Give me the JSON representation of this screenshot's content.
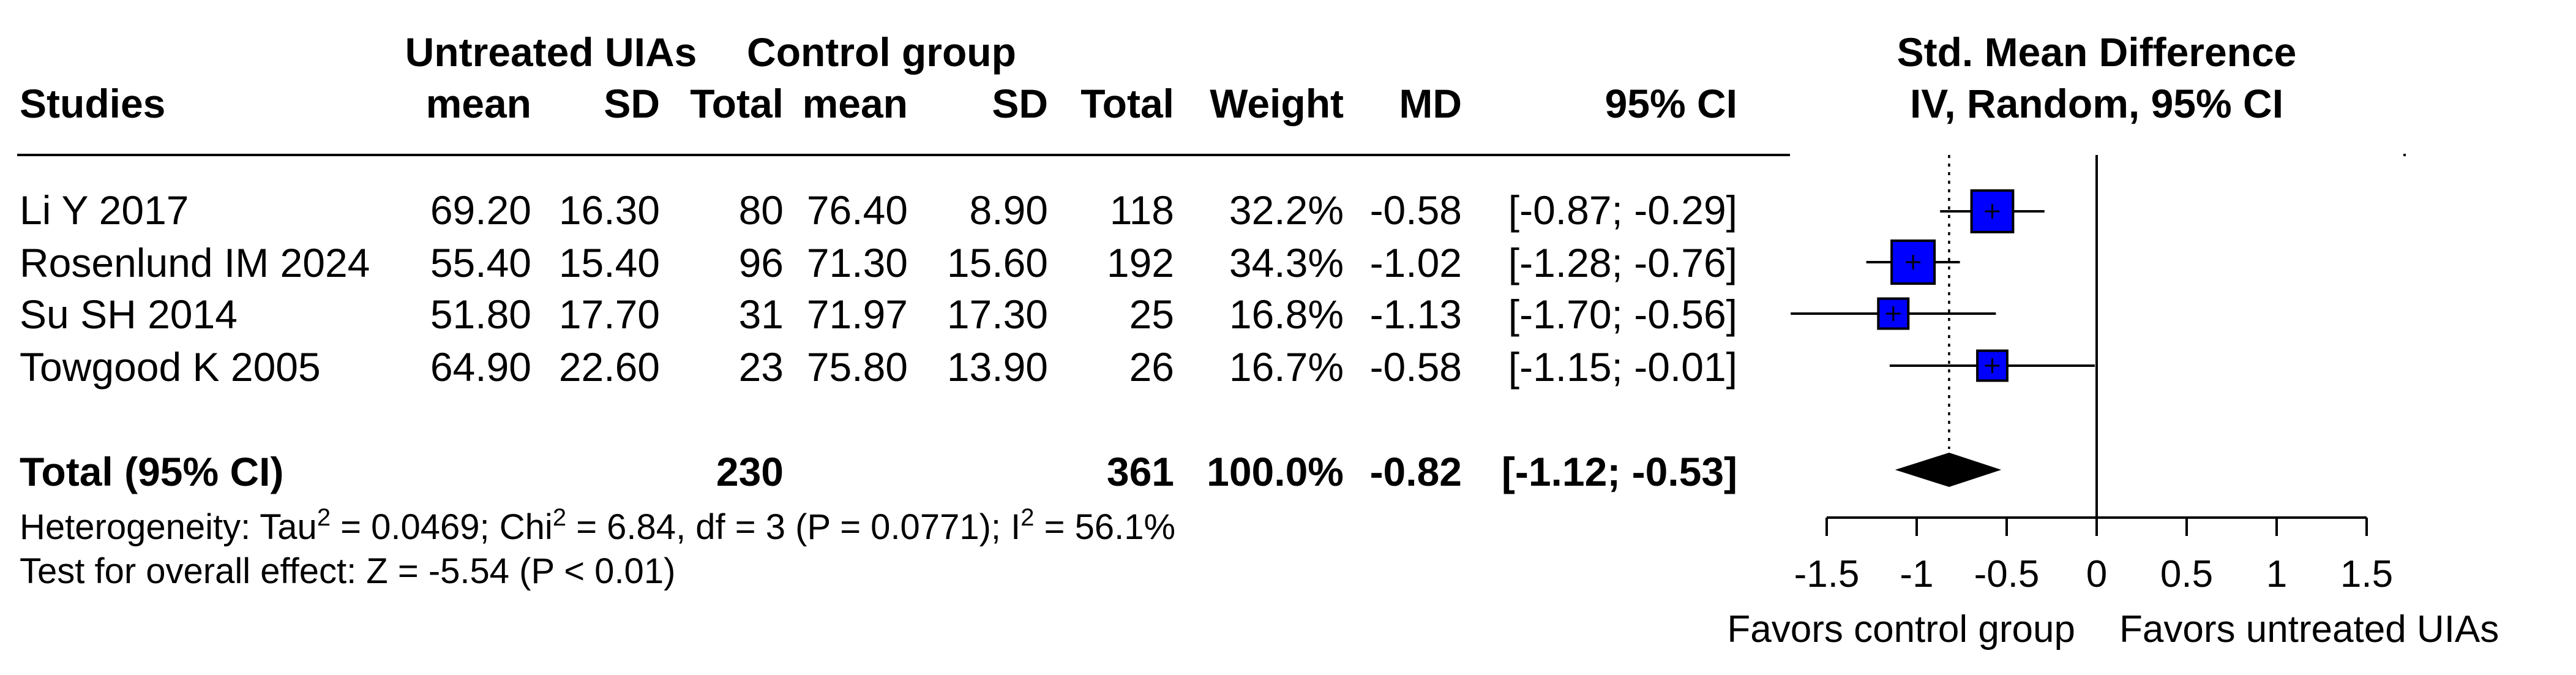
{
  "chart_data": {
    "type": "forest",
    "headers": {
      "group1": "Untreated UIAs",
      "group2": "Control group",
      "studies": "Studies",
      "mean1": "mean",
      "sd1": "SD",
      "total1": "Total",
      "mean2": "mean",
      "sd2": "SD",
      "total2": "Total",
      "weight": "Weight",
      "md": "MD",
      "ci": "95% CI",
      "plot_title": "Std. Mean Difference",
      "plot_subtitle": "IV, Random, 95% CI"
    },
    "studies": [
      {
        "name": "Li Y 2017",
        "mean1": "69.20",
        "sd1": "16.30",
        "total1": "80",
        "mean2": "76.40",
        "sd2": "8.90",
        "total2": "118",
        "weight": "32.2%",
        "md": "-0.58",
        "ci": "[-0.87; -0.29]",
        "est": -0.58,
        "lo": -0.87,
        "hi": -0.29,
        "w": 32.2
      },
      {
        "name": "Rosenlund IM 2024",
        "mean1": "55.40",
        "sd1": "15.40",
        "total1": "96",
        "mean2": "71.30",
        "sd2": "15.60",
        "total2": "192",
        "weight": "34.3%",
        "md": "-1.02",
        "ci": "[-1.28; -0.76]",
        "est": -1.02,
        "lo": -1.28,
        "hi": -0.76,
        "w": 34.3
      },
      {
        "name": "Su SH 2014",
        "mean1": "51.80",
        "sd1": "17.70",
        "total1": "31",
        "mean2": "71.97",
        "sd2": "17.30",
        "total2": "25",
        "weight": "16.8%",
        "md": "-1.13",
        "ci": "[-1.70; -0.56]",
        "est": -1.13,
        "lo": -1.7,
        "hi": -0.56,
        "w": 16.8
      },
      {
        "name": "Towgood K 2005",
        "mean1": "64.90",
        "sd1": "22.60",
        "total1": "23",
        "mean2": "75.80",
        "sd2": "13.90",
        "total2": "26",
        "weight": "16.7%",
        "md": "-0.58",
        "ci": "[-1.15; -0.01]",
        "est": -0.58,
        "lo": -1.15,
        "hi": -0.01,
        "w": 16.7
      }
    ],
    "total": {
      "label": "Total (95% CI)",
      "total1": "230",
      "total2": "361",
      "weight": "100.0%",
      "md": "-0.82",
      "ci": "[-1.12; -0.53]",
      "est": -0.82,
      "lo": -1.12,
      "hi": -0.53
    },
    "heterogeneity": {
      "prefix": "Heterogeneity: Tau",
      "sup1": "2",
      "part2": " = 0.0469; Chi",
      "sup2": "2",
      "part3": " = 6.84, df = 3 (P = 0.0771); I",
      "sup3": "2",
      "part4": " = 56.1%"
    },
    "overall_effect": "Test for overall effect: Z = -5.54 (P < 0.01)",
    "axis": {
      "xlim": [
        -1.5,
        1.5
      ],
      "ticks": [
        -1.5,
        -1,
        -0.5,
        0,
        0.5,
        1,
        1.5
      ],
      "tick_labels": [
        "-1.5",
        "-1",
        "-0.5",
        "0",
        "0.5",
        "1",
        "1.5"
      ],
      "null_value": 0,
      "favors_left": "Favors control group",
      "favors_right": "Favors untreated UIAs"
    },
    "colors": {
      "square": "#0000ff",
      "diamond": "#000000",
      "line": "#000000"
    }
  }
}
